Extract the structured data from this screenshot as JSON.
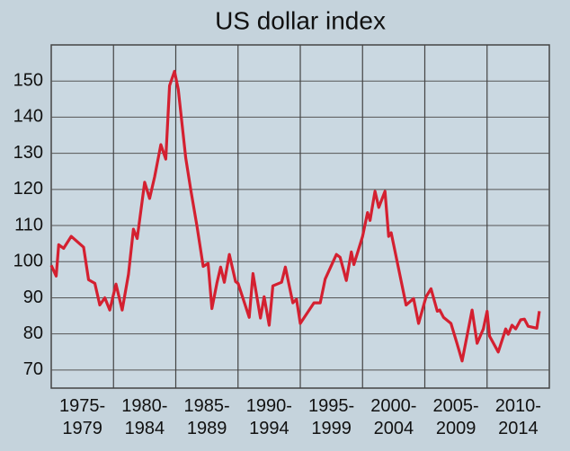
{
  "chart_data": {
    "type": "line",
    "title": "US dollar index",
    "categories": [
      "1975-\n1979",
      "1980-\n1984",
      "1985-\n1989",
      "1990-\n1994",
      "1995-\n1999",
      "2000-\n2004",
      "2005-\n2009",
      "2010-\n2014"
    ],
    "x": [
      1975.0,
      1975.4,
      1975.6,
      1976.0,
      1976.6,
      1977.6,
      1978.0,
      1978.5,
      1978.9,
      1979.3,
      1979.7,
      1980.2,
      1980.7,
      1981.2,
      1981.6,
      1981.9,
      1982.5,
      1982.9,
      1983.3,
      1983.8,
      1984.2,
      1984.5,
      1984.9,
      1985.2,
      1985.8,
      1986.2,
      1986.7,
      1987.2,
      1987.6,
      1987.9,
      1988.3,
      1988.6,
      1988.9,
      1989.3,
      1989.8,
      1990.0,
      1990.9,
      1991.2,
      1991.8,
      1992.1,
      1992.5,
      1992.8,
      1993.5,
      1993.8,
      1994.4,
      1994.7,
      1995.0,
      1996.1,
      1996.6,
      1997.0,
      1997.9,
      1998.2,
      1998.7,
      1999.1,
      1999.3,
      2000.0,
      2000.4,
      2000.6,
      2001.0,
      2001.3,
      2001.8,
      2002.1,
      2002.3,
      2003.5,
      2004.1,
      2004.5,
      2005.1,
      2005.5,
      2006.0,
      2006.2,
      2006.5,
      2007.1,
      2007.6,
      2008.0,
      2008.8,
      2009.2,
      2009.7,
      2010.0,
      2010.2,
      2010.9,
      2011.5,
      2011.7,
      2012.0,
      2012.3,
      2012.7,
      2013.0,
      2013.3,
      2014.0,
      2014.2
    ],
    "values": [
      99,
      96,
      104.7,
      103.7,
      107,
      104,
      95,
      94,
      88,
      90,
      86.6,
      93.8,
      86.6,
      96.5,
      109,
      106.4,
      122,
      117.5,
      123.5,
      132.4,
      128.4,
      148.7,
      152.7,
      147.7,
      128.7,
      120,
      110,
      98.7,
      99.5,
      87,
      94,
      98.5,
      94.3,
      102,
      94.5,
      94,
      84.6,
      96.7,
      84.4,
      90.3,
      82.4,
      93.3,
      94.3,
      98.5,
      88.6,
      89.6,
      82.9,
      88.6,
      88.6,
      95.2,
      102,
      101.2,
      94.8,
      102.7,
      99.2,
      107,
      113.6,
      111.4,
      119.5,
      115,
      119.5,
      107,
      108,
      88,
      89.8,
      82.9,
      90.3,
      92.5,
      86.3,
      86.6,
      84.6,
      82.9,
      77.2,
      72.5,
      86.6,
      77.4,
      81.4,
      86.3,
      79.4,
      75,
      81.4,
      79.9,
      82.4,
      81.4,
      83.9,
      84.1,
      82.1,
      81.6,
      86.3
    ],
    "color": "#d42030",
    "xlim": [
      1975,
      2015
    ],
    "ylim": [
      65,
      160
    ],
    "yticks": [
      70,
      80,
      90,
      100,
      110,
      120,
      130,
      140,
      150
    ],
    "grid": true
  }
}
